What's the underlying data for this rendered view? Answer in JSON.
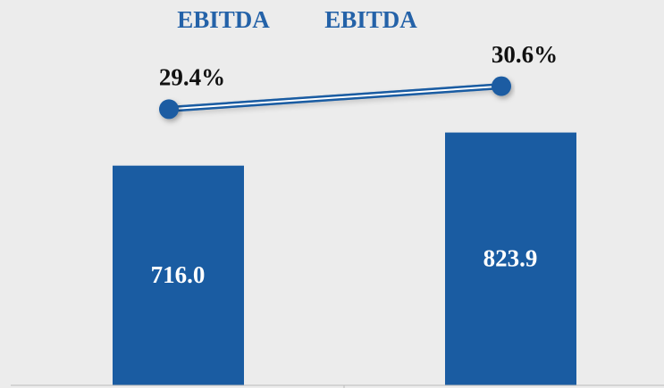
{
  "chart_data": {
    "type": "bar",
    "categories": [
      null,
      null
    ],
    "series": [
      {
        "name": "EBITDA",
        "type": "bar",
        "color": "#1a5ca2",
        "values": [
          716.0,
          823.9
        ],
        "value_labels": [
          "716.0",
          "823.9"
        ]
      },
      {
        "name": "EBITDA",
        "type": "line",
        "axis": "y2",
        "color": "#1a5ca2",
        "values": [
          29.4,
          30.6
        ],
        "value_labels": [
          "29.4%",
          "30.6%"
        ]
      }
    ],
    "ylim": [
      0,
      1250
    ],
    "y2lim": [
      15,
      35
    ],
    "legend": "top"
  }
}
